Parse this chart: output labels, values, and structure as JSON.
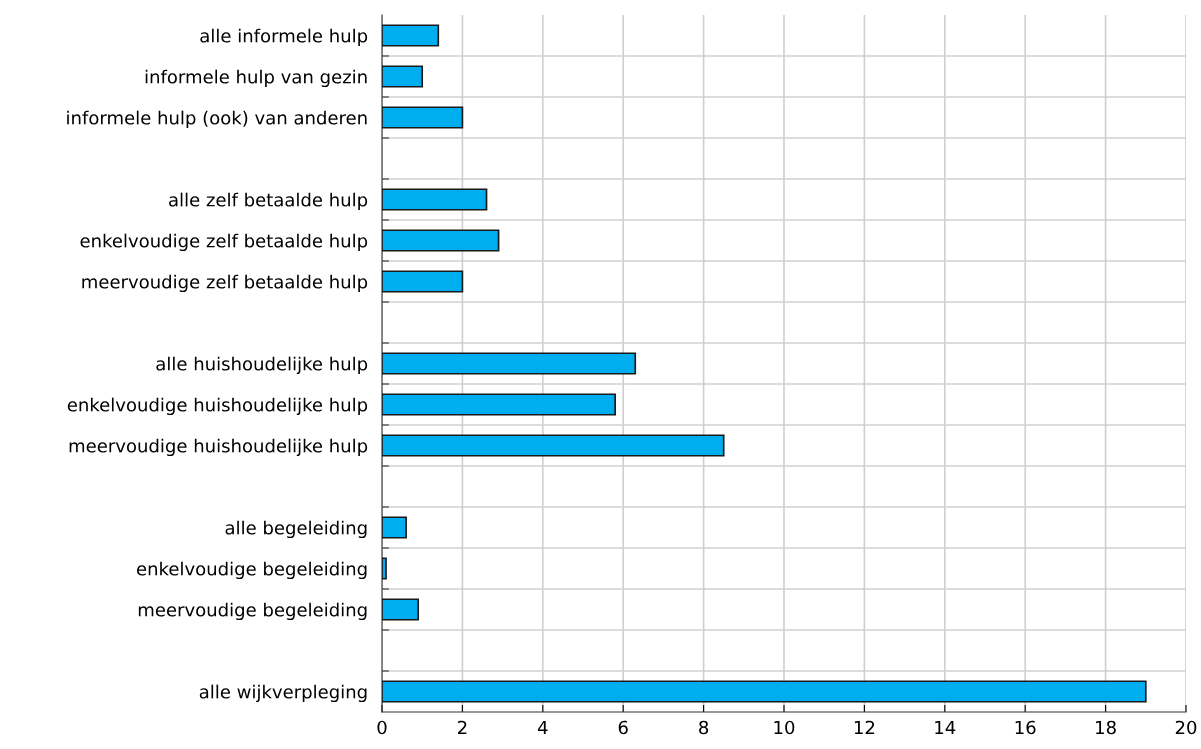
{
  "chart_data": {
    "type": "bar",
    "orientation": "horizontal",
    "categories": [
      "alle informele hulp",
      "informele hulp van gezin",
      "informele hulp (ook) van anderen",
      null,
      "alle zelf betaalde hulp",
      "enkelvoudige zelf betaalde hulp",
      "meervoudige zelf betaalde hulp",
      null,
      "alle huishoudelijke hulp",
      "enkelvoudige huishoudelijke hulp",
      "meervoudige huishoudelijke hulp",
      null,
      "alle begeleiding",
      "enkelvoudige begeleiding",
      "meervoudige begeleiding",
      null,
      "alle wijkverpleging"
    ],
    "values": [
      1.4,
      1.0,
      2.0,
      null,
      2.6,
      2.9,
      2.0,
      null,
      6.3,
      5.8,
      8.5,
      null,
      0.6,
      0.1,
      0.9,
      null,
      19.0
    ],
    "color": "#00aeef",
    "xlim": [
      0,
      20
    ],
    "xticks": [
      0,
      2,
      4,
      6,
      8,
      10,
      12,
      14,
      16,
      18,
      20
    ],
    "grid": true
  }
}
